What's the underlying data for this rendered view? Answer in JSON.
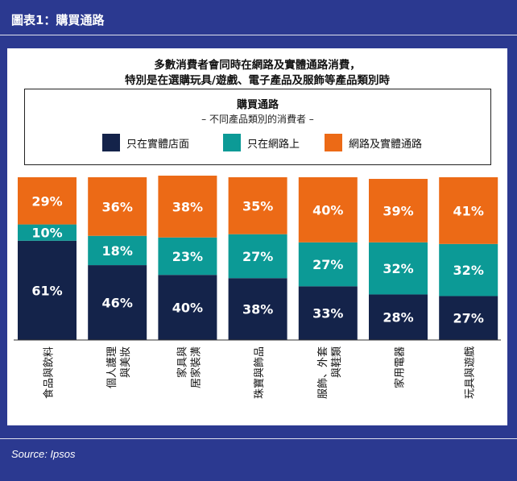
{
  "header": {
    "title": "圖表1：購買通路"
  },
  "headline": {
    "line1": "多數消費者會同時在網路及實體通路消費，",
    "line2": "特別是在選購玩具/遊戲、電子產品及服飾等產品類別時"
  },
  "legend": {
    "title": "購買通路",
    "subtitle": "– 不同產品類別的消費者 –",
    "items": [
      {
        "label": "只在實體店面",
        "color": "#14234a"
      },
      {
        "label": "只在網路上",
        "color": "#0c9a96"
      },
      {
        "label": "網路及實體通路",
        "color": "#ec6a16"
      }
    ]
  },
  "chart_data": {
    "type": "bar",
    "stacked": true,
    "percent": true,
    "ylim": [
      0,
      100
    ],
    "categories": [
      [
        "食品與飲料"
      ],
      [
        "個人護理",
        "與美妝"
      ],
      [
        "家具與",
        "居家裝潢"
      ],
      [
        "珠寶與飾品"
      ],
      [
        "服飾、外套",
        "與鞋類"
      ],
      [
        "家用電器"
      ],
      [
        "玩具與遊戲"
      ]
    ],
    "series": [
      {
        "name": "只在實體店面",
        "color": "#14234a",
        "values": [
          61,
          46,
          40,
          38,
          33,
          28,
          27
        ]
      },
      {
        "name": "只在網路上",
        "color": "#0c9a96",
        "values": [
          10,
          18,
          23,
          27,
          27,
          32,
          32
        ]
      },
      {
        "name": "網路及實體通路",
        "color": "#ec6a16",
        "values": [
          29,
          36,
          38,
          35,
          40,
          39,
          41
        ]
      }
    ]
  },
  "footer": {
    "source": "Source: Ipsos"
  }
}
